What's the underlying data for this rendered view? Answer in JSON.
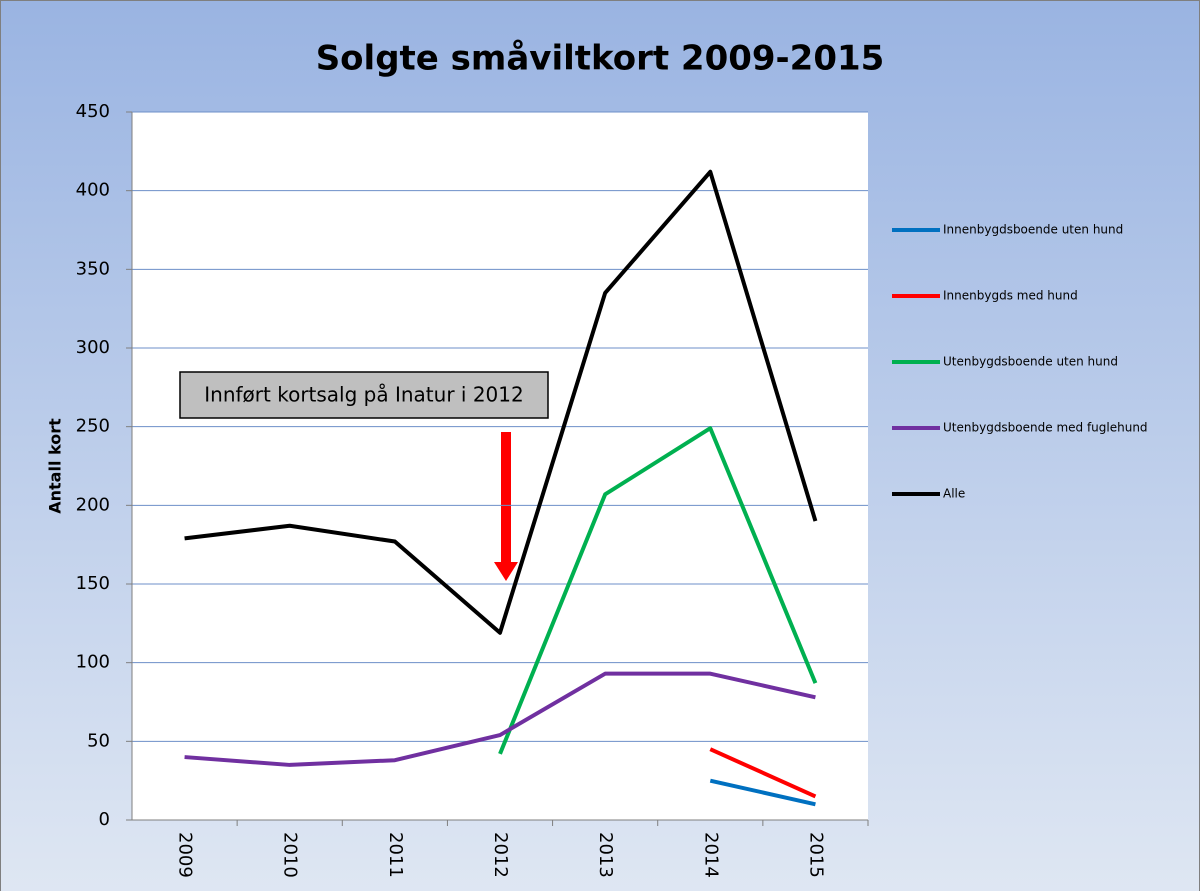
{
  "chart_data": {
    "type": "line",
    "title": "Solgte småviltkort 2009-2015",
    "y_label": "Antall kort",
    "annotation": "Innført kortsalg på Inatur i 2012",
    "categories": [
      "2009",
      "2010",
      "2011",
      "2012",
      "2013",
      "2014",
      "2015"
    ],
    "series": [
      {
        "name": "Innenbygdsboende uten hund",
        "color": "#0070c0",
        "values": [
          null,
          null,
          null,
          null,
          null,
          25,
          10
        ]
      },
      {
        "name": "Innenbygds med hund",
        "color": "#ff0000",
        "values": [
          null,
          null,
          null,
          null,
          null,
          45,
          15
        ]
      },
      {
        "name": "Utenbygdsboende uten hund",
        "color": "#00b050",
        "values": [
          null,
          null,
          null,
          42,
          207,
          249,
          87
        ]
      },
      {
        "name": "Utenbygdsboende med fuglehund",
        "color": "#7030a0",
        "values": [
          40,
          35,
          38,
          54,
          93,
          93,
          78
        ]
      },
      {
        "name": "Alle",
        "color": "#000000",
        "values": [
          179,
          187,
          177,
          119,
          335,
          412,
          190
        ]
      }
    ],
    "ylim": [
      0,
      450
    ],
    "yticks": [
      0,
      50,
      100,
      150,
      200,
      250,
      300,
      350,
      400,
      450
    ],
    "grid": true,
    "legend": "right"
  }
}
